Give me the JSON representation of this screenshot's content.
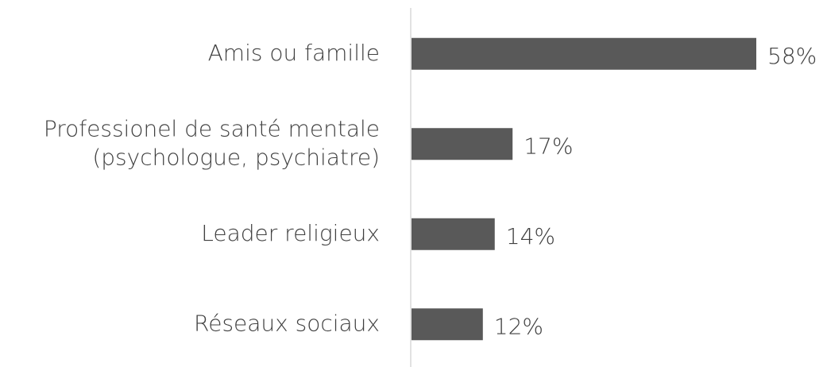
{
  "chart_data": {
    "type": "bar",
    "orientation": "horizontal",
    "categories": [
      "Amis ou famille",
      [
        "Professionel de santé mentale",
        "(psychologue, psychiatre)"
      ],
      "Leader religieux",
      "Réseaux sociaux"
    ],
    "values": [
      58,
      17,
      14,
      12
    ],
    "value_labels": [
      "58%",
      "17%",
      "14%",
      "12%"
    ],
    "color": "#595959"
  }
}
